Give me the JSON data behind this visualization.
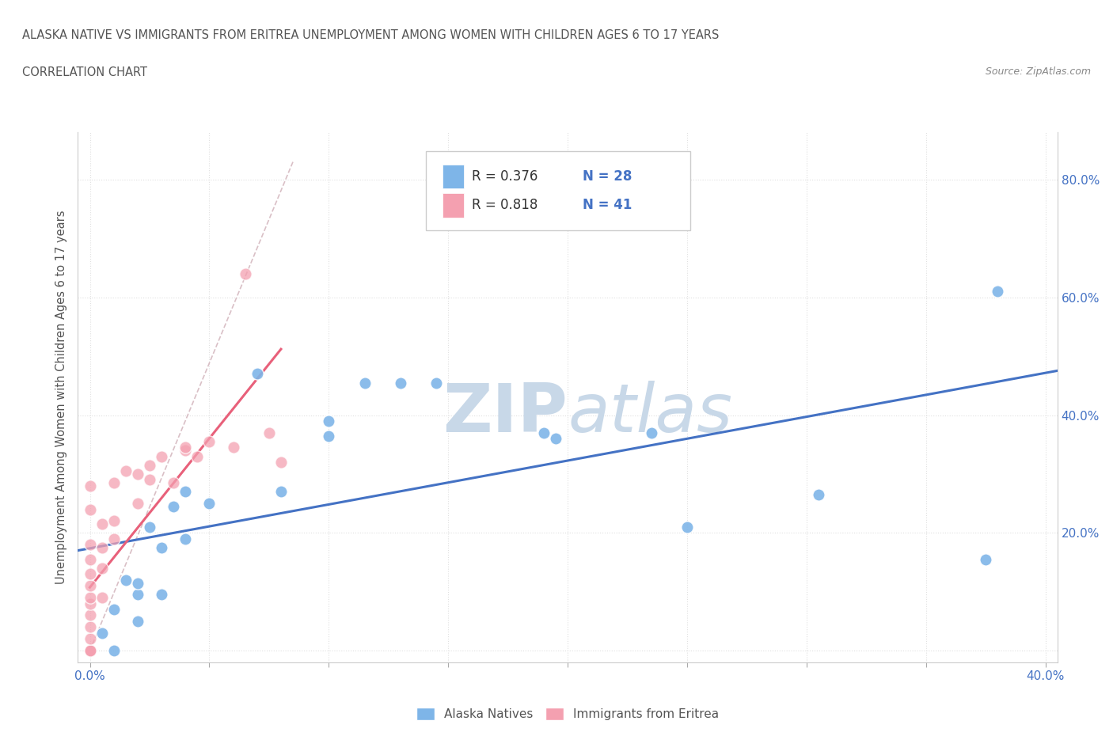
{
  "title_line1": "ALASKA NATIVE VS IMMIGRANTS FROM ERITREA UNEMPLOYMENT AMONG WOMEN WITH CHILDREN AGES 6 TO 17 YEARS",
  "title_line2": "CORRELATION CHART",
  "source": "Source: ZipAtlas.com",
  "ylabel": "Unemployment Among Women with Children Ages 6 to 17 years",
  "xlim": [
    -0.005,
    0.405
  ],
  "ylim": [
    -0.02,
    0.88
  ],
  "xticks": [
    0.0,
    0.05,
    0.1,
    0.15,
    0.2,
    0.25,
    0.3,
    0.35,
    0.4
  ],
  "xtick_labels": [
    "0.0%",
    "",
    "",
    "",
    "",
    "",
    "",
    "",
    "40.0%"
  ],
  "yticks": [
    0.0,
    0.2,
    0.4,
    0.6,
    0.8
  ],
  "ytick_labels_right": [
    "",
    "20.0%",
    "40.0%",
    "60.0%",
    "80.0%"
  ],
  "alaska_color": "#7eb5e8",
  "eritrea_color": "#f4a0b0",
  "trend_alaska_color": "#4472c4",
  "trend_eritrea_color": "#e8607a",
  "dashed_line_color": "#d0b0b8",
  "watermark_color": "#c8d8e8",
  "grid_color": "#e0e0e0",
  "background_color": "#ffffff",
  "alaska_x": [
    0.005,
    0.01,
    0.01,
    0.015,
    0.02,
    0.02,
    0.02,
    0.025,
    0.03,
    0.03,
    0.035,
    0.04,
    0.04,
    0.05,
    0.07,
    0.08,
    0.1,
    0.1,
    0.115,
    0.13,
    0.145,
    0.19,
    0.195,
    0.235,
    0.25,
    0.305,
    0.375,
    0.38
  ],
  "alaska_y": [
    0.03,
    0.0,
    0.07,
    0.12,
    0.05,
    0.095,
    0.115,
    0.21,
    0.095,
    0.175,
    0.245,
    0.19,
    0.27,
    0.25,
    0.47,
    0.27,
    0.39,
    0.365,
    0.455,
    0.455,
    0.455,
    0.37,
    0.36,
    0.37,
    0.21,
    0.265,
    0.155,
    0.61
  ],
  "eritrea_x": [
    0.0,
    0.0,
    0.0,
    0.0,
    0.0,
    0.0,
    0.0,
    0.0,
    0.0,
    0.0,
    0.0,
    0.0,
    0.0,
    0.0,
    0.0,
    0.0,
    0.0,
    0.0,
    0.0,
    0.005,
    0.005,
    0.005,
    0.005,
    0.01,
    0.01,
    0.01,
    0.015,
    0.02,
    0.02,
    0.025,
    0.025,
    0.03,
    0.035,
    0.04,
    0.04,
    0.045,
    0.05,
    0.06,
    0.065,
    0.075,
    0.08
  ],
  "eritrea_y": [
    0.0,
    0.0,
    0.0,
    0.0,
    0.0,
    0.0,
    0.0,
    0.0,
    0.02,
    0.04,
    0.06,
    0.08,
    0.09,
    0.11,
    0.13,
    0.155,
    0.18,
    0.24,
    0.28,
    0.09,
    0.14,
    0.175,
    0.215,
    0.19,
    0.22,
    0.285,
    0.305,
    0.25,
    0.3,
    0.29,
    0.315,
    0.33,
    0.285,
    0.34,
    0.345,
    0.33,
    0.355,
    0.345,
    0.64,
    0.37,
    0.32
  ],
  "legend_label_alaska": "Alaska Natives",
  "legend_label_eritrea": "Immigrants from Eritrea",
  "legend_R_alaska": "R = 0.376",
  "legend_N_alaska": "N = 28",
  "legend_R_eritrea": "R = 0.818",
  "legend_N_eritrea": "N = 41"
}
